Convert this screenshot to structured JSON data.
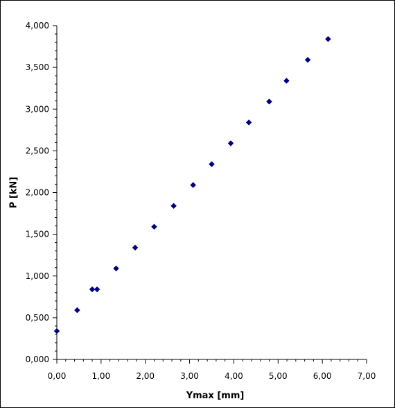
{
  "chart_data": {
    "type": "scatter",
    "title": "",
    "xlabel": "Ymax [mm]",
    "ylabel": "P [kN]",
    "xlim": [
      0,
      7
    ],
    "ylim": [
      0,
      4
    ],
    "x_ticks": [
      "0,00",
      "1,00",
      "2,00",
      "3,00",
      "4,00",
      "5,00",
      "6,00",
      "7,00"
    ],
    "y_ticks": [
      "0,000",
      "0,500",
      "1,000",
      "1,500",
      "2,000",
      "2,500",
      "3,000",
      "3,500",
      "4,000"
    ],
    "grid": false,
    "legend": "none",
    "marker_color": "#000080",
    "series": [
      {
        "points": [
          {
            "x": 0.0,
            "y": 0.34
          },
          {
            "x": 0.46,
            "y": 0.59
          },
          {
            "x": 0.8,
            "y": 0.84
          },
          {
            "x": 0.91,
            "y": 0.84
          },
          {
            "x": 1.34,
            "y": 1.09
          },
          {
            "x": 1.77,
            "y": 1.34
          },
          {
            "x": 2.2,
            "y": 1.59
          },
          {
            "x": 2.64,
            "y": 1.84
          },
          {
            "x": 3.08,
            "y": 2.09
          },
          {
            "x": 3.5,
            "y": 2.34
          },
          {
            "x": 3.93,
            "y": 2.59
          },
          {
            "x": 4.34,
            "y": 2.84
          },
          {
            "x": 4.8,
            "y": 3.09
          },
          {
            "x": 5.19,
            "y": 3.34
          },
          {
            "x": 5.67,
            "y": 3.59
          },
          {
            "x": 6.13,
            "y": 3.84
          }
        ]
      }
    ]
  }
}
